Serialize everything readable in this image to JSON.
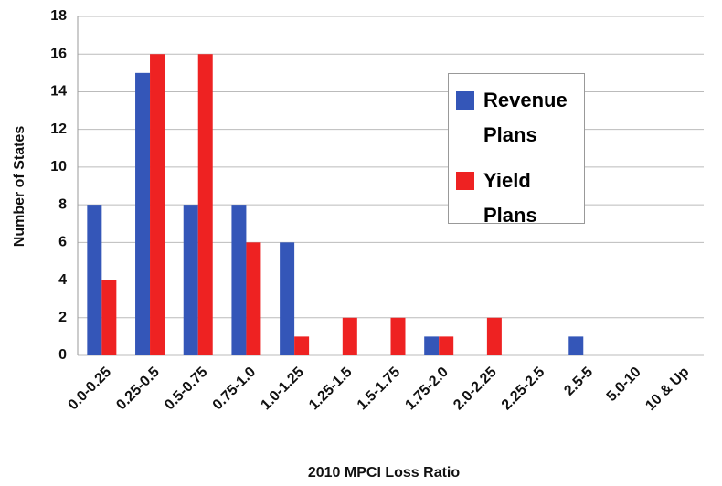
{
  "chart_data": {
    "type": "bar",
    "x_label": "2010 MPCI Loss Ratio",
    "y_label": "Number of States",
    "categories": [
      "0.0-0.25",
      "0.25-0.5",
      "0.5-0.75",
      "0.75-1.0",
      "1.0-1.25",
      "1.25-1.5",
      "1.5-1.75",
      "1.75-2.0",
      "2.0-2.25",
      "2.25-2.5",
      "2.5-5",
      "5.0-10",
      "10 & Up"
    ],
    "series": [
      {
        "name": "Revenue Plans",
        "color": "#3456b8",
        "values": [
          8,
          15,
          8,
          8,
          6,
          0,
          0,
          1,
          0,
          0,
          1,
          0,
          0
        ]
      },
      {
        "name": "Yield Plans",
        "color": "#ee2222",
        "values": [
          4,
          16,
          16,
          6,
          1,
          2,
          2,
          1,
          2,
          0,
          0,
          0,
          0
        ]
      }
    ],
    "ylim": [
      0,
      18
    ],
    "yticks": [
      0,
      2,
      4,
      6,
      8,
      10,
      12,
      14,
      16,
      18
    ],
    "grid": true,
    "legend": "upper right"
  }
}
